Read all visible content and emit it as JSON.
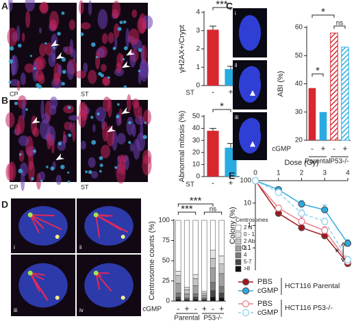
{
  "chart_data": [
    {
      "panel": "A",
      "type": "bar",
      "image_labels": [
        "CP",
        "ST"
      ],
      "ylabel": "γH2AX+/Crypt",
      "group_label": "ST",
      "categories": [
        "-",
        "+"
      ],
      "values": [
        3.05,
        0.9
      ],
      "errors": [
        0.2,
        0.15
      ],
      "colors": [
        "#d7282f",
        "#29abe2"
      ],
      "ylim": [
        0,
        4
      ],
      "yticks": [
        0,
        1,
        2,
        3,
        4
      ],
      "annotations": [
        "***"
      ]
    },
    {
      "panel": "B",
      "type": "bar",
      "image_labels": [
        "CP",
        "ST"
      ],
      "ylabel": "Abnormal mitosis (%)",
      "group_label": "ST",
      "categories": [
        "-",
        "+"
      ],
      "values": [
        38,
        24
      ],
      "errors": [
        2,
        3.5
      ],
      "colors": [
        "#d7282f",
        "#29abe2"
      ],
      "ylim": [
        0,
        50
      ],
      "yticks": [
        0,
        10,
        20,
        30,
        40,
        50
      ],
      "annotations": [
        "*"
      ]
    },
    {
      "panel": "C",
      "type": "bar",
      "image_labels": [
        "i",
        "ii",
        "iii"
      ],
      "ylabel": "ABI (%)",
      "row_label": "cGMP",
      "categories": [
        "-",
        "+",
        "-",
        "+"
      ],
      "groups": [
        "Parental",
        "P53-/-"
      ],
      "values": [
        38.5,
        30,
        58,
        53
      ],
      "colors": [
        "#d7282f",
        "#29abe2",
        "#d7282f",
        "#29abe2"
      ],
      "hatched": [
        false,
        false,
        true,
        true
      ],
      "ylim": [
        20,
        60
      ],
      "yticks": [
        20,
        30,
        40,
        50,
        60
      ],
      "annotations": [
        "*",
        "*",
        "ns"
      ]
    },
    {
      "panel": "D",
      "type": "stacked_bar",
      "image_labels": [
        "i",
        "ii",
        "iii",
        "iv"
      ],
      "ylabel": "Centrosome counts (%)",
      "row_label": "cGMP",
      "categories": [
        "-",
        "+",
        "-",
        "+",
        "-",
        "+"
      ],
      "groups": [
        "Parental",
        "P53-/-"
      ],
      "legend_title": "Centrosomes",
      "ylim": [
        0,
        100
      ],
      "yticks": [
        0,
        25,
        50,
        75,
        100
      ],
      "annotations": [
        "***",
        "***",
        "ns"
      ],
      "series": [
        {
          "name": "2 N",
          "color": "#ffffff",
          "values": [
            63,
            83,
            67,
            88,
            37,
            44
          ]
        },
        {
          "name": "0 - 1",
          "color": "#e6e6e6",
          "values": [
            5,
            3,
            5,
            2,
            10,
            10
          ]
        },
        {
          "name": "2 Ab",
          "color": "#c4c4c4",
          "values": [
            10,
            5,
            9,
            3,
            12,
            12
          ]
        },
        {
          "name": "3",
          "color": "#a0a0a0",
          "values": [
            12,
            5,
            10,
            3,
            18,
            16
          ]
        },
        {
          "name": "4",
          "color": "#7a7a7a",
          "values": [
            5,
            2,
            4,
            2,
            10,
            8
          ]
        },
        {
          "name": "5-7",
          "color": "#484848",
          "values": [
            3,
            1,
            3,
            1,
            8,
            6
          ]
        },
        {
          "name": ">8",
          "color": "#111111",
          "values": [
            2,
            1,
            2,
            1,
            5,
            4
          ]
        }
      ]
    },
    {
      "panel": "E",
      "type": "line",
      "xlabel": "Dose (Gy)",
      "ylabel": "Colony (%)",
      "log_y": true,
      "x": [
        0,
        1,
        2,
        3,
        4
      ],
      "xlim": [
        0,
        4
      ],
      "xticks": [
        0,
        1,
        2,
        3,
        4
      ],
      "ylim": [
        0.01,
        100
      ],
      "yticks": [
        100,
        10,
        1,
        0.1
      ],
      "annotations": [
        "*"
      ],
      "groups": [
        {
          "label": "HCT116 Parental",
          "series": [
            {
              "name": "PBS",
              "color": "#a3161c",
              "filled": true,
              "dashed": false,
              "values": [
                100,
                3.5,
                0.8,
                0.35,
                0.02
              ],
              "errors": [
                null,
                1.5,
                0.5,
                0.15,
                0.008
              ]
            },
            {
              "name": "cGMP",
              "color": "#29abe2",
              "filled": true,
              "dashed": false,
              "values": [
                100,
                40,
                9,
                5,
                0.16
              ],
              "errors": [
                null,
                12,
                4,
                3,
                0.07
              ]
            }
          ]
        },
        {
          "label": "HCT116 P53-/-",
          "series": [
            {
              "name": "PBS",
              "color": "#e8808a",
              "filled": false,
              "dashed": false,
              "values": [
                100,
                6,
                1.5,
                0.6,
                0.025
              ],
              "errors": [
                null,
                2,
                0.8,
                0.3,
                0.01
              ]
            },
            {
              "name": "cGMP",
              "color": "#8fd3f0",
              "filled": false,
              "dashed": true,
              "values": [
                100,
                30,
                3.5,
                1.5,
                0.03
              ],
              "errors": [
                null,
                10,
                1.5,
                0.6,
                0.012
              ]
            }
          ]
        }
      ]
    }
  ]
}
